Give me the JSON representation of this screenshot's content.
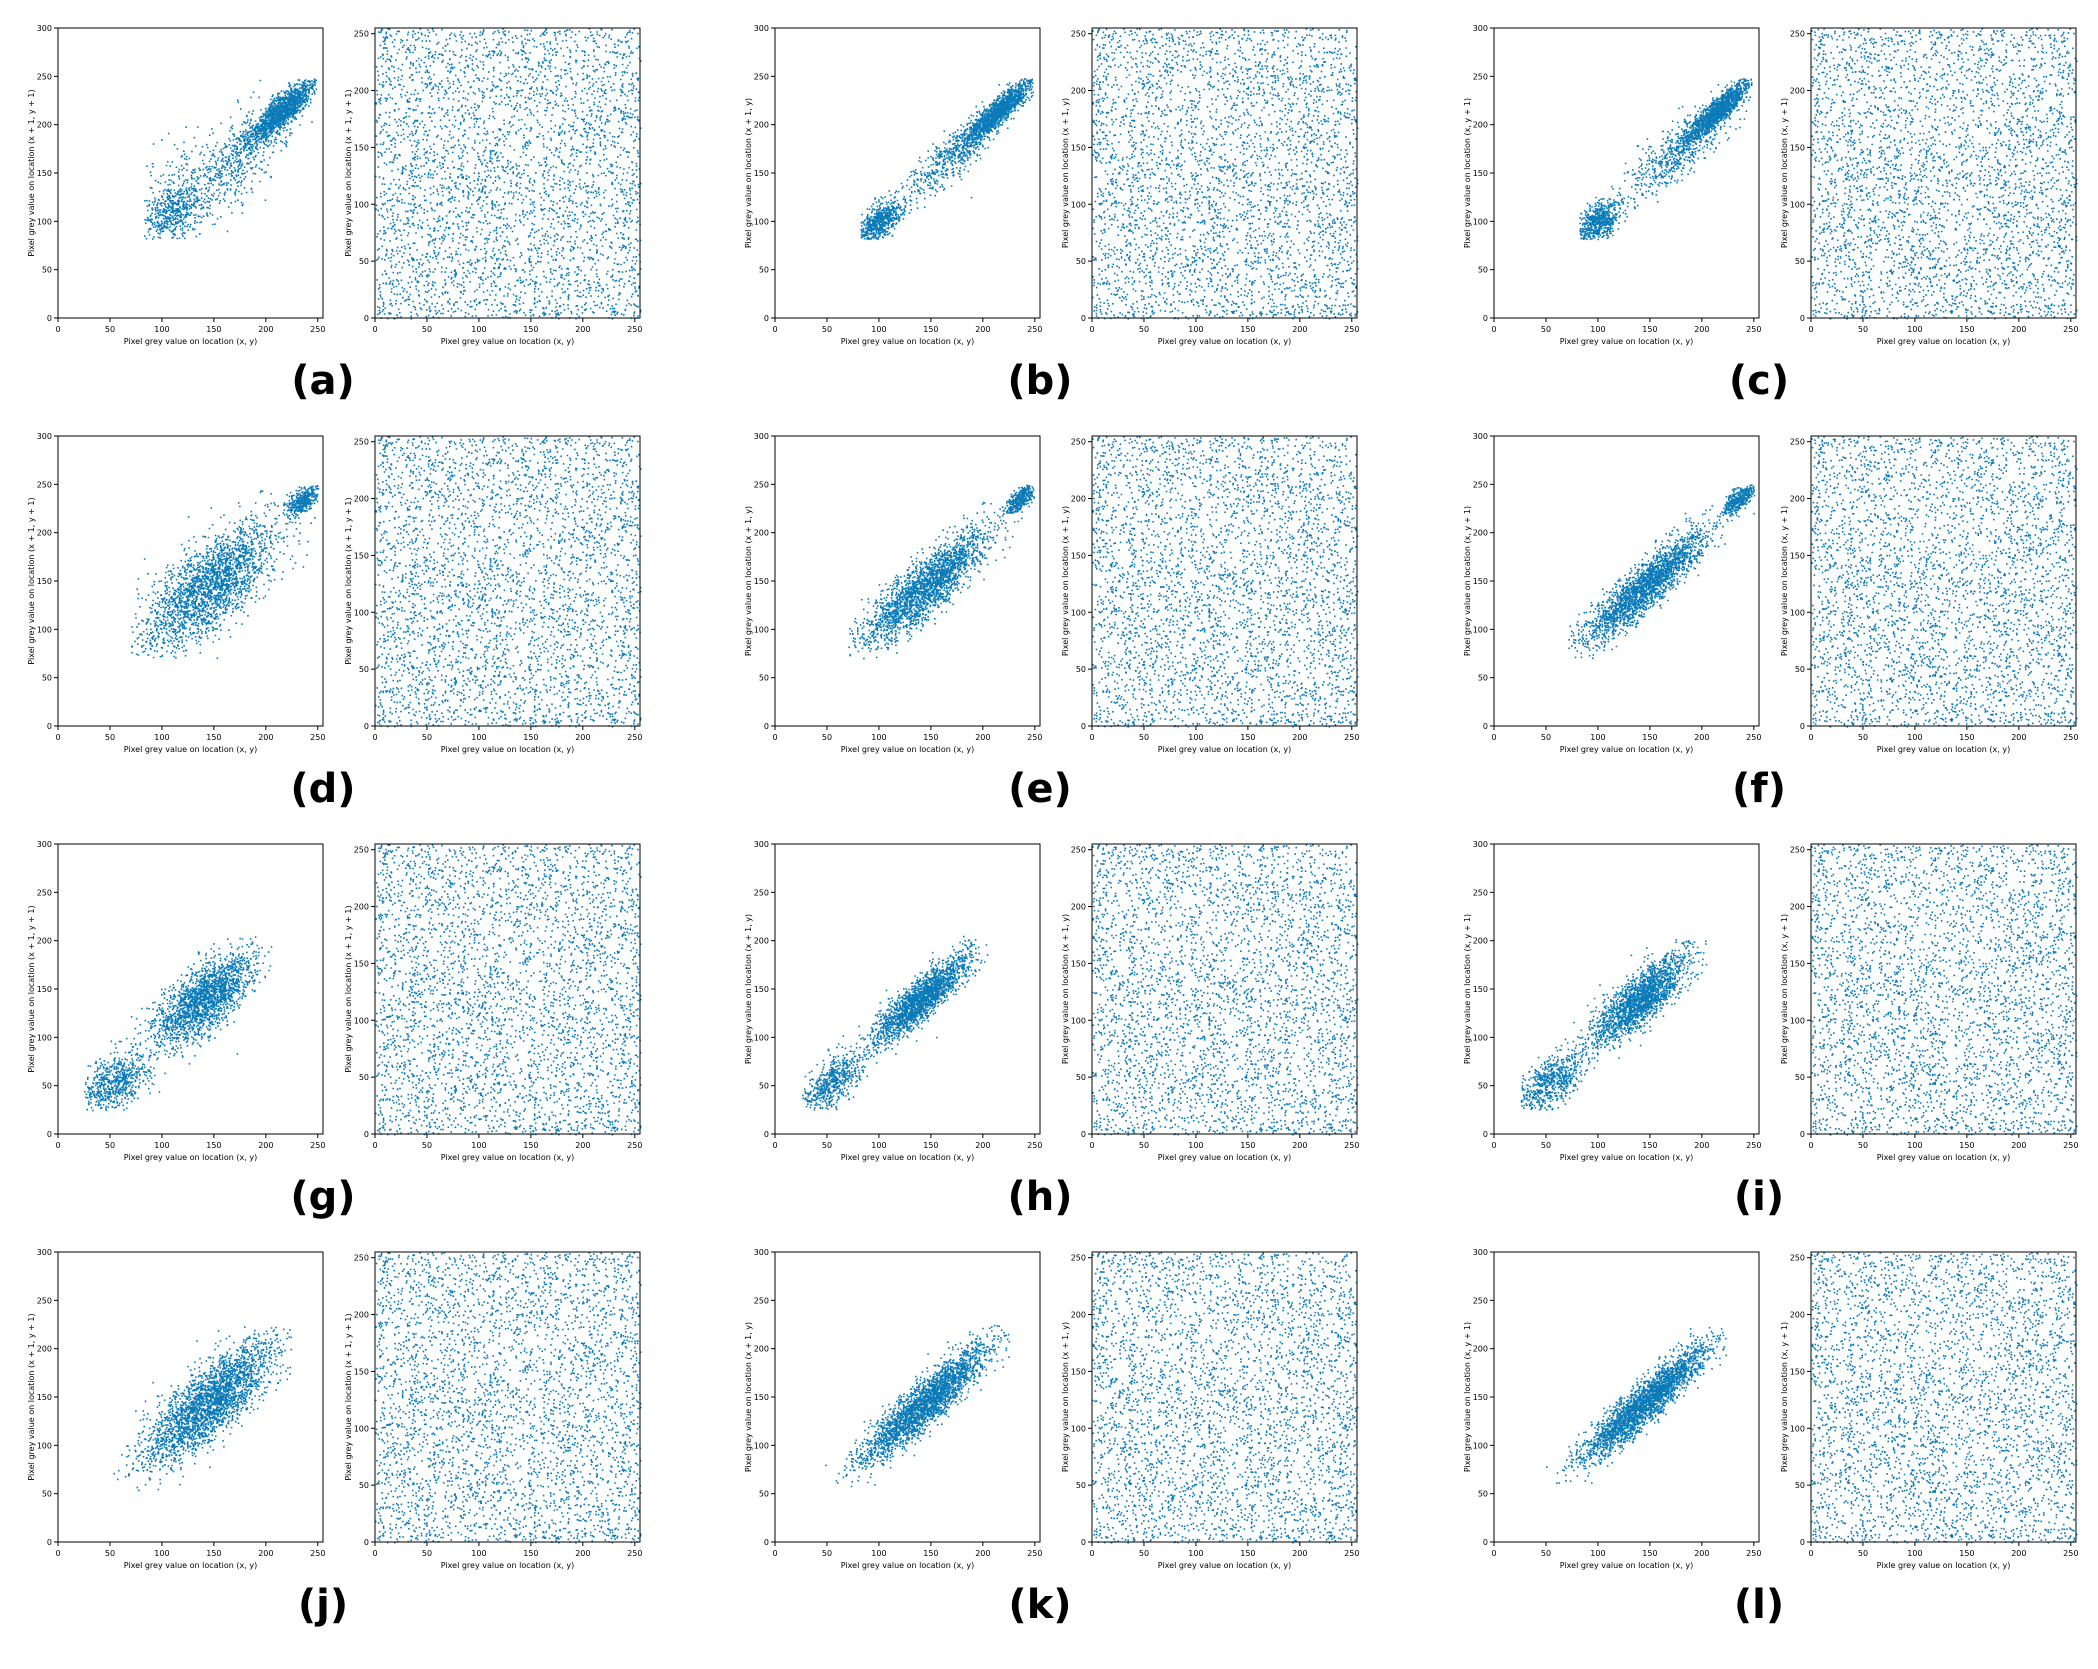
{
  "figure": {
    "marker_color": "#0a7ab8",
    "axis_color": "#000000",
    "background": "#ffffff"
  },
  "chart_data": [
    {
      "panel": "(a)",
      "plot": "original",
      "type": "scatter",
      "direction": "diagonal",
      "xlabel": "Pixel grey value on location (x, y)",
      "ylabel": "Pixel grey value on location (x + 1, y + 1)",
      "xlim": [
        0,
        255
      ],
      "ylim": [
        0,
        300
      ],
      "xticks": [
        0,
        50,
        100,
        150,
        200,
        250
      ],
      "yticks": [
        0,
        50,
        100,
        150,
        200,
        250,
        300
      ],
      "clusters": [
        {
          "center": [
            215,
            215
          ],
          "spread_major": 22,
          "spread_minor": 6,
          "weight": 0.55
        },
        {
          "center": [
            180,
            175
          ],
          "spread_major": 30,
          "spread_minor": 14,
          "weight": 0.15
        },
        {
          "center": [
            110,
            110
          ],
          "spread_major": 18,
          "spread_minor": 12,
          "weight": 0.2
        },
        {
          "center": [
            140,
            145
          ],
          "spread_major": 30,
          "spread_minor": 25,
          "weight": 0.1
        }
      ],
      "value_range": [
        82,
        248
      ]
    },
    {
      "panel": "(a)",
      "plot": "encrypted",
      "type": "scatter",
      "distribution": "uniform",
      "xlabel": "Pixel grey value on location (x, y)",
      "ylabel": "Pixel grey value on location (x + 1, y + 1)",
      "xlim": [
        0,
        255
      ],
      "ylim": [
        0,
        255
      ],
      "xticks": [
        0,
        50,
        100,
        150,
        200,
        250
      ],
      "yticks": [
        0,
        50,
        100,
        150,
        200,
        250
      ],
      "value_range": [
        0,
        255
      ]
    },
    {
      "panel": "(b)",
      "plot": "original",
      "type": "scatter",
      "direction": "horizontal",
      "xlabel": "Pixel grey value on location (x, y)",
      "ylabel": "Pixel grey value on location (x + 1, y)",
      "xlim": [
        0,
        255
      ],
      "ylim": [
        0,
        300
      ],
      "xticks": [
        0,
        50,
        100,
        150,
        200,
        250
      ],
      "yticks": [
        0,
        50,
        100,
        150,
        200,
        250,
        300
      ],
      "clusters": [
        {
          "center": [
            215,
            215
          ],
          "spread_major": 22,
          "spread_minor": 5,
          "weight": 0.55
        },
        {
          "center": [
            170,
            168
          ],
          "spread_major": 30,
          "spread_minor": 9,
          "weight": 0.2
        },
        {
          "center": [
            100,
            100
          ],
          "spread_major": 14,
          "spread_minor": 7,
          "weight": 0.25
        }
      ],
      "value_range": [
        82,
        248
      ]
    },
    {
      "panel": "(b)",
      "plot": "encrypted",
      "type": "scatter",
      "distribution": "uniform",
      "xlabel": "Pixel grey value on location (x, y)",
      "ylabel": "Pixel grey value on location (x + 1, y)",
      "xlim": [
        0,
        255
      ],
      "ylim": [
        0,
        255
      ],
      "xticks": [
        0,
        50,
        100,
        150,
        200,
        250
      ],
      "yticks": [
        0,
        50,
        100,
        150,
        200,
        250
      ],
      "value_range": [
        0,
        255
      ]
    },
    {
      "panel": "(c)",
      "plot": "original",
      "type": "scatter",
      "direction": "vertical",
      "xlabel": "Pixel grey value on location (x, y)",
      "ylabel": "Pixel grey value on location (x, y + 1)",
      "xlim": [
        0,
        255
      ],
      "ylim": [
        0,
        300
      ],
      "xticks": [
        0,
        50,
        100,
        150,
        200,
        250
      ],
      "yticks": [
        0,
        50,
        100,
        150,
        200,
        250,
        300
      ],
      "clusters": [
        {
          "center": [
            215,
            215
          ],
          "spread_major": 22,
          "spread_minor": 5,
          "weight": 0.55
        },
        {
          "center": [
            175,
            172
          ],
          "spread_major": 30,
          "spread_minor": 11,
          "weight": 0.2
        },
        {
          "center": [
            100,
            100
          ],
          "spread_major": 14,
          "spread_minor": 8,
          "weight": 0.25
        }
      ],
      "value_range": [
        82,
        248
      ]
    },
    {
      "panel": "(c)",
      "plot": "encrypted",
      "type": "scatter",
      "distribution": "uniform",
      "xlabel": "Pixel grey value on location (x, y)",
      "ylabel": "Pixel grey value on location (x, y + 1)",
      "xlim": [
        0,
        255
      ],
      "ylim": [
        0,
        255
      ],
      "xticks": [
        0,
        50,
        100,
        150,
        200,
        250
      ],
      "yticks": [
        0,
        50,
        100,
        150,
        200,
        250
      ],
      "value_range": [
        0,
        255
      ]
    },
    {
      "panel": "(d)",
      "plot": "original",
      "type": "scatter",
      "direction": "diagonal",
      "xlabel": "Pixel grey value on location (x, y)",
      "ylabel": "Pixel grey value on location (x + 1, y + 1)",
      "xlim": [
        0,
        255
      ],
      "ylim": [
        0,
        300
      ],
      "xticks": [
        0,
        50,
        100,
        150,
        200,
        250
      ],
      "yticks": [
        0,
        50,
        100,
        150,
        200,
        250,
        300
      ],
      "clusters": [
        {
          "center": [
            145,
            145
          ],
          "spread_major": 42,
          "spread_minor": 17,
          "weight": 0.85
        },
        {
          "center": [
            235,
            235
          ],
          "spread_major": 10,
          "spread_minor": 5,
          "weight": 0.15
        }
      ],
      "value_range": [
        70,
        250
      ]
    },
    {
      "panel": "(d)",
      "plot": "encrypted",
      "type": "scatter",
      "distribution": "uniform",
      "xlabel": "Pixel grey value on location (x, y)",
      "ylabel": "Pixel grey value on location (x + 1, y + 1)",
      "xlim": [
        0,
        255
      ],
      "ylim": [
        0,
        255
      ],
      "xticks": [
        0,
        50,
        100,
        150,
        200,
        250
      ],
      "yticks": [
        0,
        50,
        100,
        150,
        200,
        250
      ],
      "value_range": [
        0,
        255
      ]
    },
    {
      "panel": "(e)",
      "plot": "original",
      "type": "scatter",
      "direction": "horizontal",
      "xlabel": "Pixel grey value on location (x, y)",
      "ylabel": "Pixel grey value on location (x + 1, y)",
      "xlim": [
        0,
        255
      ],
      "ylim": [
        0,
        300
      ],
      "xticks": [
        0,
        50,
        100,
        150,
        200,
        250
      ],
      "yticks": [
        0,
        50,
        100,
        150,
        200,
        250,
        300
      ],
      "clusters": [
        {
          "center": [
            145,
            145
          ],
          "spread_major": 40,
          "spread_minor": 11,
          "weight": 0.85
        },
        {
          "center": [
            235,
            235
          ],
          "spread_major": 10,
          "spread_minor": 4,
          "weight": 0.15
        }
      ],
      "value_range": [
        70,
        250
      ]
    },
    {
      "panel": "(e)",
      "plot": "encrypted",
      "type": "scatter",
      "distribution": "uniform",
      "xlabel": "Pixel grey value on location (x, y)",
      "ylabel": "Pixel grey value on location (x + 1, y)",
      "xlim": [
        0,
        255
      ],
      "ylim": [
        0,
        255
      ],
      "xticks": [
        0,
        50,
        100,
        150,
        200,
        250
      ],
      "yticks": [
        0,
        50,
        100,
        150,
        200,
        250
      ],
      "value_range": [
        0,
        255
      ]
    },
    {
      "panel": "(f)",
      "plot": "original",
      "type": "scatter",
      "direction": "vertical",
      "xlabel": "Pixel grey value on location (x, y)",
      "ylabel": "Pixel grey value on location (x, y + 1)",
      "xlim": [
        0,
        255
      ],
      "ylim": [
        0,
        300
      ],
      "xticks": [
        0,
        50,
        100,
        150,
        200,
        250
      ],
      "yticks": [
        0,
        50,
        100,
        150,
        200,
        250,
        300
      ],
      "clusters": [
        {
          "center": [
            145,
            145
          ],
          "spread_major": 40,
          "spread_minor": 9,
          "weight": 0.85
        },
        {
          "center": [
            235,
            235
          ],
          "spread_major": 10,
          "spread_minor": 4,
          "weight": 0.15
        }
      ],
      "value_range": [
        70,
        250
      ]
    },
    {
      "panel": "(f)",
      "plot": "encrypted",
      "type": "scatter",
      "distribution": "uniform",
      "xlabel": "Pixel grey value on location (x, y)",
      "ylabel": "Pixel grey value on location (x, y + 1)",
      "xlim": [
        0,
        255
      ],
      "ylim": [
        0,
        255
      ],
      "xticks": [
        0,
        50,
        100,
        150,
        200,
        250
      ],
      "yticks": [
        0,
        50,
        100,
        150,
        200,
        250
      ],
      "value_range": [
        0,
        255
      ]
    },
    {
      "panel": "(g)",
      "plot": "original",
      "type": "scatter",
      "direction": "diagonal",
      "xlabel": "Pixel grey value on location (x, y)",
      "ylabel": "Pixel grey value on location (x + 1, y + 1)",
      "xlim": [
        0,
        255
      ],
      "ylim": [
        0,
        300
      ],
      "xticks": [
        0,
        50,
        100,
        150,
        200,
        250
      ],
      "yticks": [
        0,
        50,
        100,
        150,
        200,
        250,
        300
      ],
      "clusters": [
        {
          "center": [
            140,
            140
          ],
          "spread_major": 30,
          "spread_minor": 13,
          "weight": 0.75
        },
        {
          "center": [
            55,
            55
          ],
          "spread_major": 20,
          "spread_minor": 12,
          "weight": 0.25
        }
      ],
      "value_range": [
        25,
        205
      ]
    },
    {
      "panel": "(g)",
      "plot": "encrypted",
      "type": "scatter",
      "distribution": "uniform",
      "xlabel": "Pixel grey value on location (x, y)",
      "ylabel": "Pixel grey value on location (x + 1, y + 1)",
      "xlim": [
        0,
        255
      ],
      "ylim": [
        0,
        255
      ],
      "xticks": [
        0,
        50,
        100,
        150,
        200,
        250
      ],
      "yticks": [
        0,
        50,
        100,
        150,
        200,
        250
      ],
      "value_range": [
        0,
        255
      ]
    },
    {
      "panel": "(h)",
      "plot": "original",
      "type": "scatter",
      "direction": "horizontal",
      "xlabel": "Pixel grey value on location (x, y)",
      "ylabel": "Pixel grey value on location (x + 1, y)",
      "xlim": [
        0,
        255
      ],
      "ylim": [
        0,
        300
      ],
      "xticks": [
        0,
        50,
        100,
        150,
        200,
        250
      ],
      "yticks": [
        0,
        50,
        100,
        150,
        200,
        250,
        300
      ],
      "clusters": [
        {
          "center": [
            140,
            140
          ],
          "spread_major": 30,
          "spread_minor": 8,
          "weight": 0.78
        },
        {
          "center": [
            55,
            55
          ],
          "spread_major": 20,
          "spread_minor": 9,
          "weight": 0.22
        }
      ],
      "value_range": [
        25,
        205
      ]
    },
    {
      "panel": "(h)",
      "plot": "encrypted",
      "type": "scatter",
      "distribution": "uniform",
      "xlabel": "Pixel grey value on location (x, y)",
      "ylabel": "Pixel grey value on location (x + 1, y)",
      "xlim": [
        0,
        255
      ],
      "ylim": [
        0,
        255
      ],
      "xticks": [
        0,
        50,
        100,
        150,
        200,
        250
      ],
      "yticks": [
        0,
        50,
        100,
        150,
        200,
        250
      ],
      "value_range": [
        0,
        255
      ]
    },
    {
      "panel": "(i)",
      "plot": "original",
      "type": "scatter",
      "direction": "vertical",
      "xlabel": "Pixel grey value on location (x, y)",
      "ylabel": "Pixel grey value on location (x, y + 1)",
      "xlim": [
        0,
        255
      ],
      "ylim": [
        0,
        300
      ],
      "xticks": [
        0,
        50,
        100,
        150,
        200,
        250
      ],
      "yticks": [
        0,
        50,
        100,
        150,
        200,
        250,
        300
      ],
      "clusters": [
        {
          "center": [
            140,
            140
          ],
          "spread_major": 30,
          "spread_minor": 10,
          "weight": 0.75
        },
        {
          "center": [
            55,
            55
          ],
          "spread_major": 20,
          "spread_minor": 10,
          "weight": 0.25
        }
      ],
      "value_range": [
        25,
        205
      ]
    },
    {
      "panel": "(i)",
      "plot": "encrypted",
      "type": "scatter",
      "distribution": "uniform",
      "xlabel": "Pixel grey value on location (x, y)",
      "ylabel": "Pixel grey value on location (x, y + 1)",
      "xlim": [
        0,
        255
      ],
      "ylim": [
        0,
        255
      ],
      "xticks": [
        0,
        50,
        100,
        150,
        200,
        250
      ],
      "yticks": [
        0,
        50,
        100,
        150,
        200,
        250
      ],
      "value_range": [
        0,
        255
      ]
    },
    {
      "panel": "(j)",
      "plot": "original",
      "type": "scatter",
      "direction": "diagonal",
      "xlabel": "Pixel grey value on location (x, y)",
      "ylabel": "Pixel grey value on location (x + 1, y + 1)",
      "xlim": [
        0,
        255
      ],
      "ylim": [
        0,
        300
      ],
      "xticks": [
        0,
        50,
        100,
        150,
        200,
        250
      ],
      "yticks": [
        0,
        50,
        100,
        150,
        200,
        250,
        300
      ],
      "clusters": [
        {
          "center": [
            145,
            145
          ],
          "spread_major": 42,
          "spread_minor": 14,
          "weight": 1.0
        }
      ],
      "value_range": [
        40,
        225
      ]
    },
    {
      "panel": "(j)",
      "plot": "encrypted",
      "type": "scatter",
      "distribution": "uniform",
      "xlabel": "Pixel grey value on location (x, y)",
      "ylabel": "Pixel grey value on location (x + 1, y + 1)",
      "xlim": [
        0,
        255
      ],
      "ylim": [
        0,
        255
      ],
      "xticks": [
        0,
        50,
        100,
        150,
        200,
        250
      ],
      "yticks": [
        0,
        50,
        100,
        150,
        200,
        250
      ],
      "value_range": [
        0,
        255
      ]
    },
    {
      "panel": "(k)",
      "plot": "original",
      "type": "scatter",
      "direction": "horizontal",
      "xlabel": "Pixel grey value on location (x, y)",
      "ylabel": "Pixel grey value on location (x + 1, y)",
      "xlim": [
        0,
        255
      ],
      "ylim": [
        0,
        300
      ],
      "xticks": [
        0,
        50,
        100,
        150,
        200,
        250
      ],
      "yticks": [
        0,
        50,
        100,
        150,
        200,
        250,
        300
      ],
      "clusters": [
        {
          "center": [
            145,
            145
          ],
          "spread_major": 42,
          "spread_minor": 9,
          "weight": 1.0
        }
      ],
      "value_range": [
        40,
        225
      ]
    },
    {
      "panel": "(k)",
      "plot": "encrypted",
      "type": "scatter",
      "distribution": "uniform",
      "xlabel": "Pixel grey value on location (x, y)",
      "ylabel": "Pixel grey value on location (x + 1, y)",
      "xlim": [
        0,
        255
      ],
      "ylim": [
        0,
        255
      ],
      "xticks": [
        0,
        50,
        100,
        150,
        200,
        250
      ],
      "yticks": [
        0,
        50,
        100,
        150,
        200,
        250
      ],
      "value_range": [
        0,
        255
      ]
    },
    {
      "panel": "(l)",
      "plot": "original",
      "type": "scatter",
      "direction": "vertical",
      "xlabel": "Pixel grey value on location (x, y)",
      "ylabel": "Pixel grey value on location (x, y + 1)",
      "xlim": [
        0,
        255
      ],
      "ylim": [
        0,
        300
      ],
      "xticks": [
        0,
        50,
        100,
        150,
        200,
        250
      ],
      "yticks": [
        0,
        50,
        100,
        150,
        200,
        250,
        300
      ],
      "clusters": [
        {
          "center": [
            145,
            145
          ],
          "spread_major": 42,
          "spread_minor": 8,
          "weight": 1.0
        }
      ],
      "value_range": [
        40,
        225
      ]
    },
    {
      "panel": "(l)",
      "plot": "encrypted",
      "type": "scatter",
      "distribution": "uniform",
      "xlabel": "Pixle grey value on location (x, y)",
      "ylabel": "Pixel grey value on location (x, y + 1)",
      "xlim": [
        0,
        255
      ],
      "ylim": [
        0,
        255
      ],
      "xticks": [
        0,
        50,
        100,
        150,
        200,
        250
      ],
      "yticks": [
        0,
        50,
        100,
        150,
        200,
        250
      ],
      "value_range": [
        0,
        255
      ]
    }
  ],
  "panel_labels": [
    "(a)",
    "(b)",
    "(c)",
    "(d)",
    "(e)",
    "(f)",
    "(g)",
    "(h)",
    "(i)",
    "(j)",
    "(k)",
    "(l)"
  ]
}
